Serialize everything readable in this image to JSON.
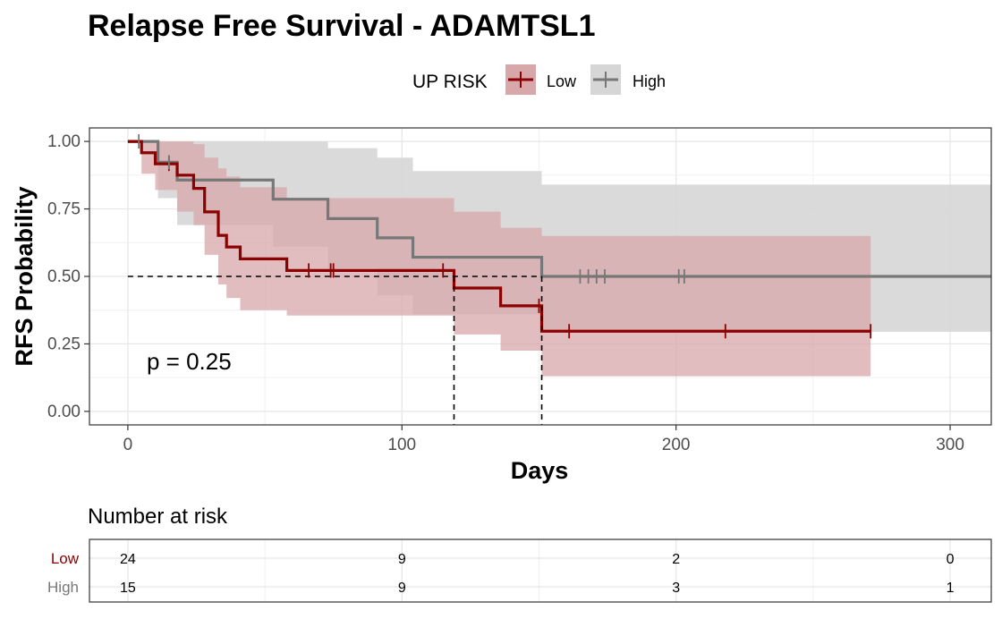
{
  "chart_data": {
    "type": "line",
    "title": "Relapse Free Survival - ADAMTSL1",
    "xlabel": "Days",
    "ylabel": "RFS Probability",
    "xlim": [
      -14,
      315
    ],
    "ylim": [
      -0.05,
      1.05
    ],
    "x_ticks": [
      0,
      100,
      200,
      300
    ],
    "x_tick_labels": [
      "0",
      "100",
      "200",
      "300"
    ],
    "y_ticks": [
      0,
      0.25,
      0.5,
      0.75,
      1
    ],
    "y_tick_labels": [
      "0.00",
      "0.25",
      "0.50",
      "0.75",
      "1.00"
    ],
    "grid": true,
    "legend": {
      "title": "UP RISK",
      "placement": "top"
    },
    "annotation": "p = 0.25",
    "median_line_y": 0.5,
    "median_x": [
      119,
      151
    ],
    "series": [
      {
        "name": "Low",
        "color": "#8b0000",
        "band_color": "#d7a7aa",
        "x": [
          0,
          5,
          10,
          18,
          24,
          28,
          33,
          36,
          41,
          58,
          119,
          136,
          151,
          271
        ],
        "y": [
          1.0,
          0.958,
          0.917,
          0.875,
          0.826,
          0.739,
          0.652,
          0.609,
          0.565,
          0.522,
          0.457,
          0.391,
          0.297,
          0.297
        ],
        "lower": [
          1.0,
          0.88,
          0.82,
          0.74,
          0.69,
          0.58,
          0.47,
          0.42,
          0.375,
          0.355,
          0.285,
          0.225,
          0.13,
          0.13
        ],
        "upper": [
          1.0,
          1.0,
          1.0,
          1.0,
          0.99,
          0.94,
          0.9,
          0.87,
          0.83,
          0.79,
          0.74,
          0.68,
          0.65,
          0.65
        ],
        "censor_x": [
          15,
          66,
          74,
          75,
          115,
          150,
          161,
          218,
          271
        ],
        "censor_y": [
          0.917,
          0.522,
          0.522,
          0.522,
          0.522,
          0.391,
          0.297,
          0.297,
          0.297
        ]
      },
      {
        "name": "High",
        "color": "#777777",
        "band_color": "#d6d6d6",
        "x": [
          0,
          11,
          18,
          53,
          73,
          91,
          104,
          151,
          315
        ],
        "y": [
          1.0,
          0.923,
          0.857,
          0.786,
          0.714,
          0.643,
          0.571,
          0.5,
          0.5
        ],
        "lower": [
          1.0,
          0.79,
          0.69,
          0.61,
          0.53,
          0.43,
          0.36,
          0.295,
          0.295
        ],
        "upper": [
          1.0,
          1.0,
          1.0,
          1.0,
          0.975,
          0.94,
          0.89,
          0.84,
          0.84
        ],
        "censor_x": [
          4,
          15,
          165,
          168,
          171,
          174,
          201,
          203
        ],
        "censor_y": [
          1.0,
          0.923,
          0.5,
          0.5,
          0.5,
          0.5,
          0.5,
          0.5
        ]
      }
    ],
    "risk_table": {
      "title": "Number at risk",
      "times": [
        0,
        100,
        200,
        300
      ],
      "rows": [
        {
          "name": "Low",
          "color": "#8b0000",
          "values": [
            24,
            9,
            2,
            0
          ]
        },
        {
          "name": "High",
          "color": "#777777",
          "values": [
            15,
            9,
            3,
            1
          ]
        }
      ]
    }
  }
}
